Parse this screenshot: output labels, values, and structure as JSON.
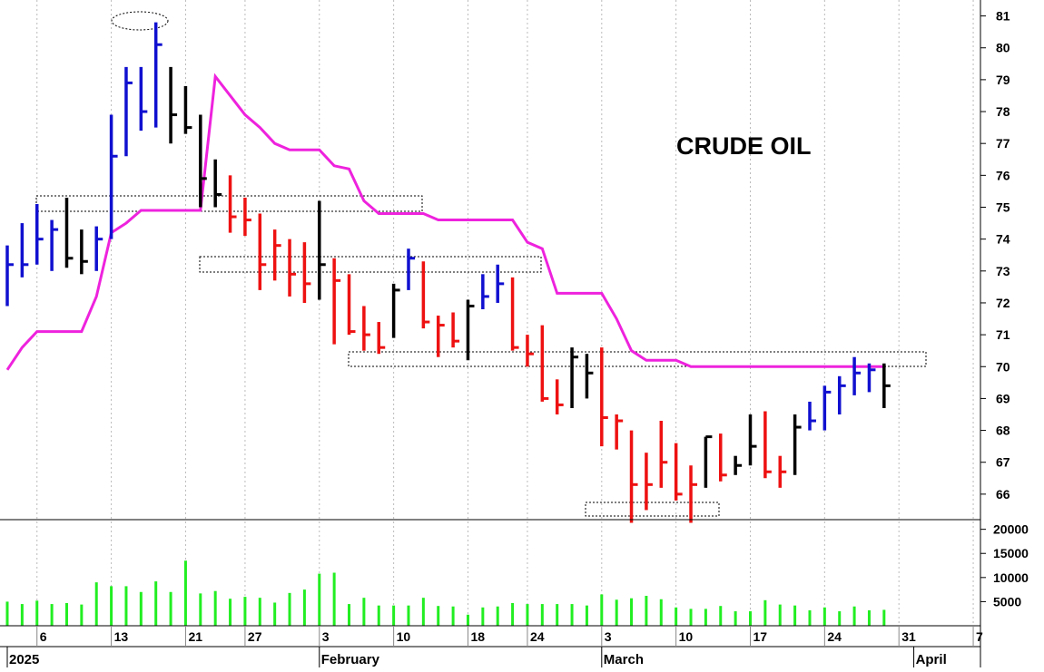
{
  "chart_data": {
    "type": "ohlc",
    "title": "CRUDE OIL",
    "categories": [
      null,
      null,
      "6",
      null,
      null,
      null,
      null,
      "13",
      null,
      null,
      null,
      null,
      "21",
      null,
      null,
      null,
      "27",
      null,
      null,
      null,
      null,
      "3",
      null,
      null,
      null,
      null,
      "10",
      null,
      null,
      null,
      null,
      "18",
      null,
      null,
      null,
      "24",
      null,
      null,
      null,
      null,
      "3",
      null,
      null,
      null,
      null,
      "10",
      null,
      null,
      null,
      null,
      "17",
      null,
      null,
      null,
      null,
      "24",
      null,
      null,
      null,
      null,
      "31",
      null,
      null,
      null,
      null,
      "7"
    ],
    "months": [
      "2025",
      null,
      null,
      null,
      null,
      null,
      null,
      null,
      null,
      null,
      null,
      null,
      null,
      null,
      null,
      null,
      null,
      null,
      null,
      null,
      null,
      "February",
      null,
      null,
      null,
      null,
      null,
      null,
      null,
      null,
      null,
      null,
      null,
      null,
      null,
      null,
      null,
      null,
      null,
      null,
      "March",
      null,
      null,
      null,
      null,
      null,
      null,
      null,
      null,
      null,
      null,
      null,
      null,
      null,
      null,
      null,
      null,
      null,
      null,
      null,
      null,
      "April",
      null,
      null,
      null,
      null
    ],
    "high": [
      73.8,
      74.5,
      75.1,
      74.6,
      75.3,
      74.3,
      74.4,
      77.9,
      79.4,
      79.4,
      80.8,
      79.4,
      78.8,
      77.9,
      76.5,
      76.0,
      75.3,
      74.8,
      74.3,
      74.0,
      73.9,
      75.2,
      73.4,
      72.9,
      71.9,
      71.4,
      72.6,
      73.7,
      73.3,
      71.6,
      71.7,
      72.1,
      72.9,
      73.2,
      72.8,
      71.0,
      71.3,
      69.6,
      70.6,
      70.4,
      70.6,
      68.5,
      68.0,
      67.3,
      68.3,
      67.6,
      66.9,
      67.8,
      67.9,
      67.2,
      68.5,
      68.6,
      67.2,
      68.5,
      68.9,
      69.4,
      69.7,
      70.3,
      70.1,
      70.1,
      null,
      null,
      null,
      null,
      null,
      null
    ],
    "low": [
      71.9,
      72.8,
      73.2,
      73.0,
      73.1,
      72.9,
      73.0,
      74.0,
      76.6,
      77.4,
      77.5,
      77.0,
      77.3,
      75.0,
      75.0,
      74.2,
      74.1,
      72.4,
      72.7,
      72.2,
      72.0,
      72.1,
      70.7,
      71.0,
      70.5,
      70.4,
      70.9,
      72.4,
      71.2,
      70.3,
      70.6,
      70.2,
      71.8,
      72.0,
      70.5,
      70.0,
      68.9,
      68.5,
      68.7,
      69.0,
      67.5,
      67.4,
      65.1,
      65.5,
      66.2,
      65.8,
      65.1,
      66.2,
      66.4,
      66.6,
      66.9,
      66.5,
      66.2,
      66.6,
      68.0,
      68.0,
      68.5,
      69.1,
      69.2,
      68.7,
      null,
      null,
      null,
      null,
      null,
      null
    ],
    "close": [
      73.2,
      73.2,
      74.0,
      74.3,
      73.4,
      73.3,
      74.0,
      76.6,
      78.9,
      78.0,
      80.1,
      77.9,
      77.5,
      75.9,
      75.4,
      74.7,
      74.6,
      73.2,
      73.8,
      72.9,
      72.6,
      73.2,
      72.7,
      71.1,
      71.0,
      70.6,
      72.4,
      73.4,
      71.4,
      71.3,
      70.8,
      71.9,
      72.2,
      72.6,
      70.6,
      70.4,
      69.0,
      68.8,
      70.3,
      69.8,
      68.4,
      68.3,
      66.3,
      66.3,
      67.0,
      66.0,
      66.3,
      67.8,
      66.6,
      66.9,
      67.5,
      66.7,
      66.7,
      68.1,
      68.3,
      69.2,
      69.4,
      69.8,
      69.9,
      69.4,
      null,
      null,
      null,
      null,
      null,
      null
    ],
    "bar_colors": [
      "#1010d0",
      "#1010d0",
      "#1010d0",
      "#1010d0",
      "#000000",
      "#000000",
      "#1010d0",
      "#1010d0",
      "#1010d0",
      "#1010d0",
      "#1010d0",
      "#000000",
      "#000000",
      "#000000",
      "#000000",
      "#ee1111",
      "#ee1111",
      "#ee1111",
      "#ee1111",
      "#ee1111",
      "#ee1111",
      "#000000",
      "#ee1111",
      "#ee1111",
      "#ee1111",
      "#ee1111",
      "#000000",
      "#1010d0",
      "#ee1111",
      "#ee1111",
      "#ee1111",
      "#000000",
      "#1010d0",
      "#1010d0",
      "#ee1111",
      "#ee1111",
      "#ee1111",
      "#ee1111",
      "#000000",
      "#000000",
      "#ee1111",
      "#ee1111",
      "#ee1111",
      "#ee1111",
      "#ee1111",
      "#ee1111",
      "#ee1111",
      "#000000",
      "#ee1111",
      "#000000",
      "#000000",
      "#ee1111",
      "#ee1111",
      "#000000",
      "#1010d0",
      "#1010d0",
      "#1010d0",
      "#1010d0",
      "#1010d0",
      "#000000",
      null,
      null,
      null,
      null,
      null,
      null
    ],
    "stop_line": {
      "color": "#ee22dd",
      "values": [
        69.9,
        70.6,
        71.1,
        71.1,
        71.1,
        71.1,
        72.2,
        74.2,
        74.5,
        74.9,
        74.9,
        74.9,
        74.9,
        74.9,
        79.1,
        78.5,
        77.9,
        77.5,
        77.0,
        76.8,
        76.8,
        76.8,
        76.3,
        76.2,
        75.2,
        74.8,
        74.8,
        74.8,
        74.8,
        74.6,
        74.6,
        74.6,
        74.6,
        74.6,
        74.6,
        73.9,
        73.7,
        72.3,
        72.3,
        72.3,
        72.3,
        71.5,
        70.5,
        70.2,
        70.2,
        70.2,
        70.0,
        70.0,
        70.0,
        70.0,
        70.0,
        70.0,
        70.0,
        70.0,
        70.0,
        70.0,
        70.0,
        70.0,
        70.0,
        70.0,
        null,
        null,
        null,
        null,
        null,
        null
      ]
    },
    "ylim": [
      65.2,
      81.5
    ],
    "yticks": [
      66,
      67,
      68,
      69,
      70,
      71,
      72,
      73,
      74,
      75,
      76,
      77,
      78,
      79,
      80,
      81
    ],
    "volume": {
      "color": "#22ee22",
      "ylim": [
        0,
        22000
      ],
      "yticks": [
        5000,
        10000,
        15000,
        20000
      ],
      "values": [
        5000,
        4500,
        5200,
        4500,
        4700,
        4400,
        9000,
        8200,
        8200,
        7000,
        9200,
        7000,
        13500,
        6700,
        7200,
        5600,
        6000,
        5800,
        4800,
        6800,
        7500,
        10800,
        11000,
        4500,
        5800,
        4200,
        4200,
        4200,
        5800,
        4100,
        4000,
        2300,
        3800,
        4000,
        4700,
        4500,
        4500,
        4500,
        4500,
        4200,
        6500,
        5400,
        5700,
        6200,
        5500,
        3800,
        3500,
        3500,
        4100,
        3000,
        3000,
        5300,
        4400,
        4200,
        3200,
        3800,
        3000,
        4000,
        3200,
        3300,
        null,
        null,
        null,
        null,
        null,
        null
      ]
    }
  }
}
